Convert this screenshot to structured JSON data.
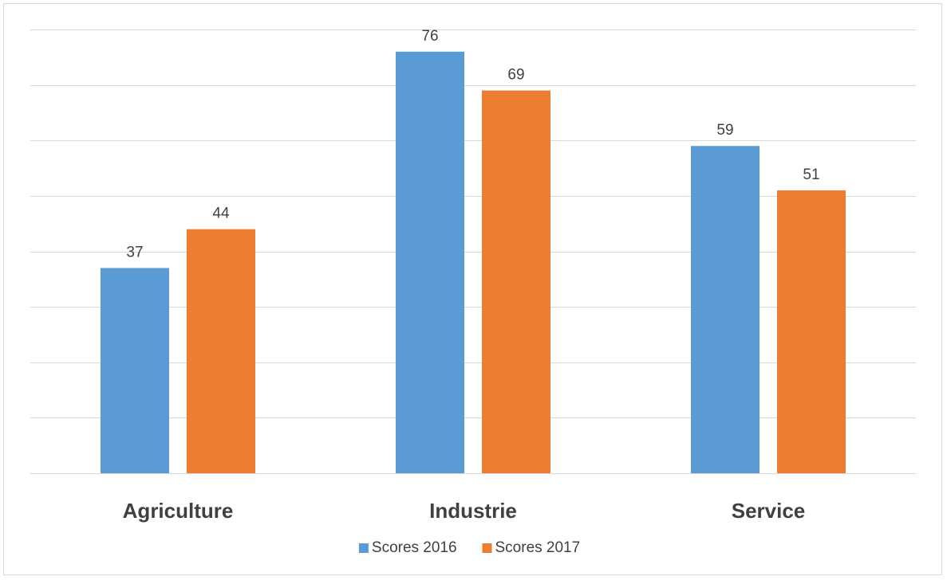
{
  "chart_data": {
    "type": "bar",
    "categories": [
      "Agriculture",
      "Industrie",
      "Service"
    ],
    "series": [
      {
        "name": "Scores 2016",
        "values": [
          37,
          76,
          59
        ],
        "color": "#5b9bd5"
      },
      {
        "name": "Scores 2017",
        "values": [
          44,
          69,
          51
        ],
        "color": "#ed7d31"
      }
    ],
    "title": "",
    "xlabel": "",
    "ylabel": "",
    "ylim": [
      0,
      80
    ],
    "grid": true,
    "legend": "bottom-center",
    "gridline_color": "#d9d9d9"
  }
}
